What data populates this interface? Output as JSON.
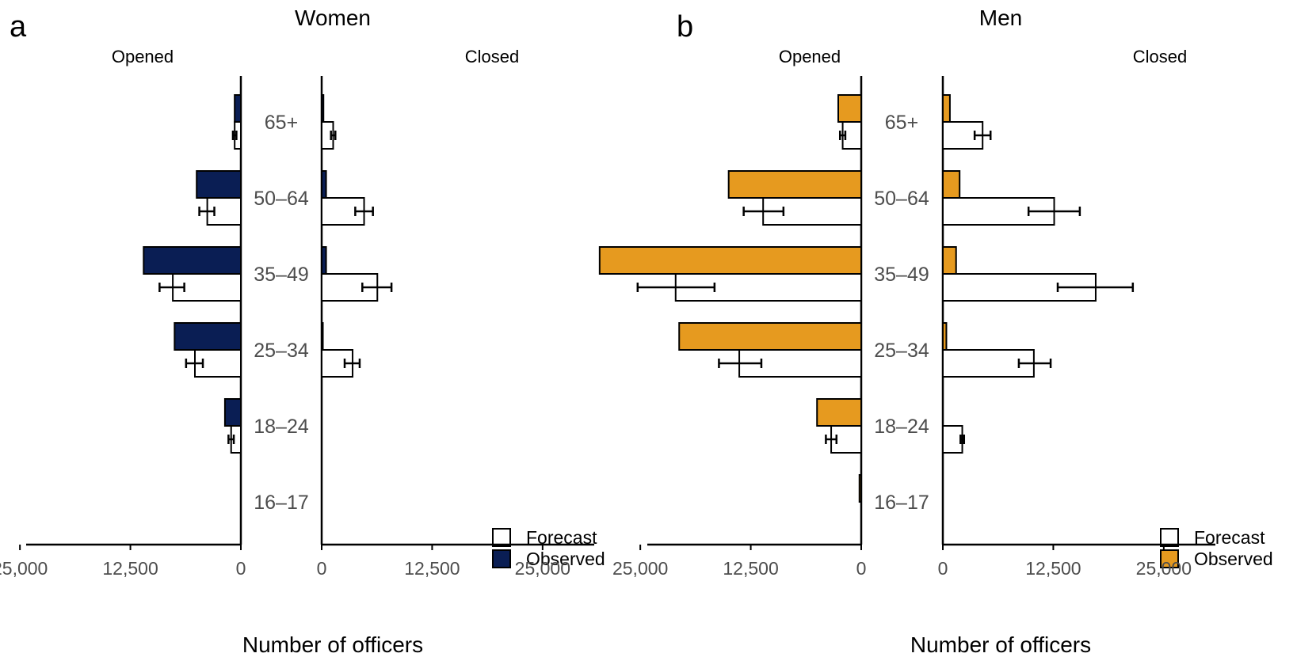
{
  "chart_data": {
    "type": "bar",
    "orientation": "horizontal-butterfly",
    "age_groups": [
      "65+",
      "50–64",
      "35–49",
      "25–34",
      "18–24",
      "16–17"
    ],
    "x_ticks": [
      "25,000",
      "12,500",
      "0"
    ],
    "x_ticks_right": [
      "0",
      "12,500",
      "25,000"
    ],
    "xlim": [
      0,
      30000
    ],
    "xlabel": "Number of officers",
    "legend": {
      "forecast": "Forecast",
      "observed": "Observed",
      "position": "bottom-right"
    },
    "panels": [
      {
        "letter": "a",
        "title": "Women",
        "observed_color": "#0a1e54",
        "opened": {
          "subtitle": "Opened",
          "observed": [
            700,
            5000,
            11000,
            7500,
            1800,
            0
          ],
          "forecast": [
            700,
            3800,
            7700,
            5200,
            1100,
            0
          ],
          "error_low": [
            500,
            3000,
            6400,
            4300,
            800,
            0
          ],
          "error_high": [
            900,
            4700,
            9200,
            6200,
            1400,
            0
          ]
        },
        "closed": {
          "subtitle": "Closed",
          "observed": [
            200,
            500,
            500,
            100,
            0,
            0
          ],
          "forecast": [
            1300,
            4800,
            6300,
            3500,
            0,
            0
          ],
          "error_low": [
            1050,
            3800,
            4600,
            2600,
            0,
            0
          ],
          "error_high": [
            1550,
            5800,
            7900,
            4300,
            0,
            0
          ]
        }
      },
      {
        "letter": "b",
        "title": "Men",
        "observed_color": "#e69a1f",
        "opened": {
          "subtitle": "Opened",
          "observed": [
            2600,
            15000,
            29600,
            20600,
            5000,
            200
          ],
          "forecast": [
            2100,
            11100,
            21000,
            13800,
            3400,
            0
          ],
          "error_low": [
            1800,
            8800,
            16600,
            11300,
            2800,
            0
          ],
          "error_high": [
            2400,
            13300,
            25300,
            16100,
            4000,
            0
          ]
        },
        "closed": {
          "subtitle": "Closed",
          "observed": [
            800,
            1900,
            1500,
            400,
            0,
            0
          ],
          "forecast": [
            4500,
            12600,
            17300,
            10300,
            2200,
            0
          ],
          "error_low": [
            3600,
            9700,
            13000,
            8600,
            2000,
            0
          ],
          "error_high": [
            5400,
            15500,
            21500,
            12200,
            2400,
            0
          ]
        }
      }
    ]
  }
}
